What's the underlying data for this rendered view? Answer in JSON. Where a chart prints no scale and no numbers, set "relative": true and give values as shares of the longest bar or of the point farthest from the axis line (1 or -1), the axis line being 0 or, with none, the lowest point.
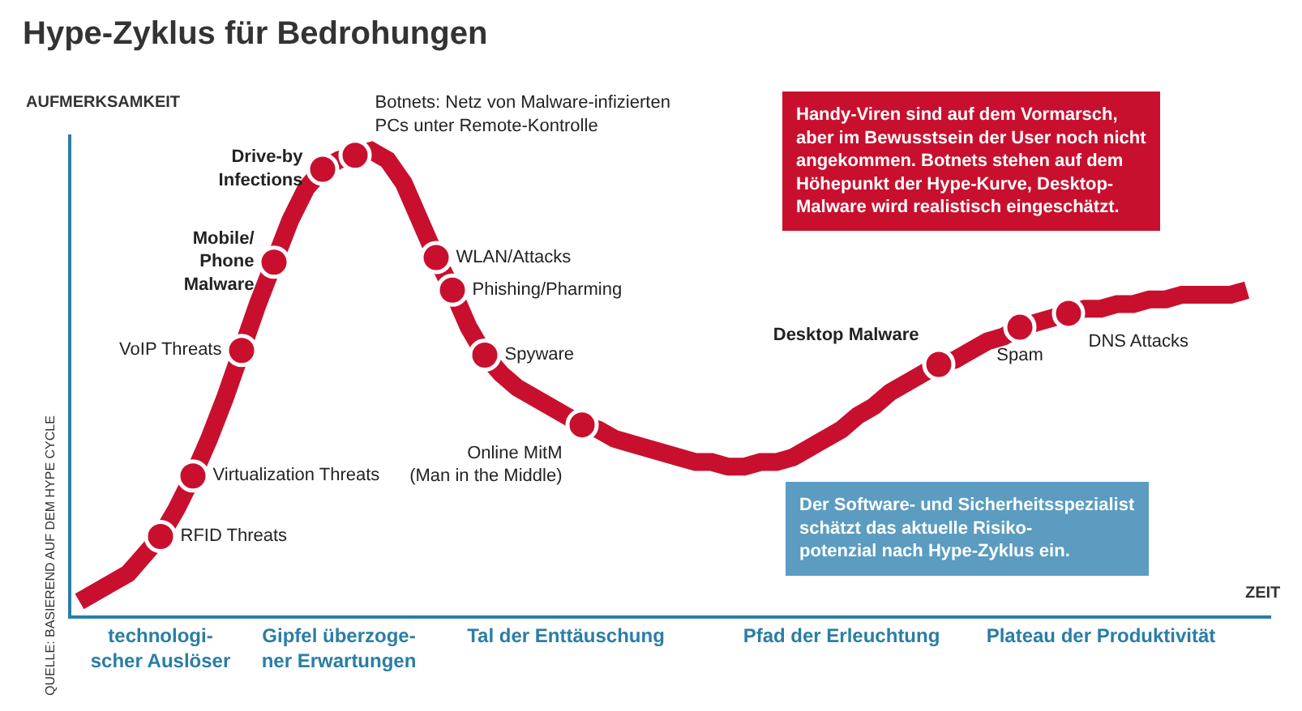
{
  "chart_data": {
    "type": "line",
    "title": "Hype-Zyklus für Bedrohungen",
    "xlabel": "ZEIT",
    "ylabel": "AUFMERKSAMKEIT",
    "relative": true,
    "categories": [
      null,
      null,
      null,
      null,
      null,
      "technologi-\nscher Auslöser",
      null,
      null,
      null,
      null,
      null,
      null,
      null,
      null,
      null,
      null,
      "Gipfel überzoge-\nner Erwartungen",
      null,
      null,
      null,
      null,
      null,
      null,
      null,
      null,
      null,
      null,
      null,
      null,
      null,
      "Tal der Enttäuschung",
      null,
      null,
      null,
      null,
      null,
      null,
      null,
      null,
      null,
      null,
      null,
      null,
      null,
      null,
      null,
      null,
      "Pfad der Erleuchtung",
      null,
      null,
      null,
      null,
      null,
      null,
      null,
      null,
      null,
      null,
      null,
      null,
      null,
      null,
      null,
      "Plateau der Produktivität",
      null,
      null,
      null,
      null,
      null,
      null,
      null,
      null,
      null,
      null
    ],
    "series": [
      {
        "color": "#c8102e",
        "values": [
          0.03,
          0.05,
          0.07,
          0.09,
          0.13,
          0.17,
          0.23,
          0.3,
          0.38,
          0.47,
          0.57,
          0.67,
          0.76,
          0.85,
          0.92,
          0.96,
          0.98,
          0.99,
          1.0,
          0.98,
          0.93,
          0.85,
          0.77,
          0.7,
          0.62,
          0.56,
          0.52,
          0.49,
          0.47,
          0.45,
          0.43,
          0.41,
          0.4,
          0.38,
          0.37,
          0.36,
          0.35,
          0.34,
          0.33,
          0.33,
          0.32,
          0.32,
          0.33,
          0.33,
          0.34,
          0.36,
          0.38,
          0.4,
          0.43,
          0.45,
          0.48,
          0.5,
          0.52,
          0.54,
          0.55,
          0.57,
          0.59,
          0.6,
          0.62,
          0.63,
          0.64,
          0.65,
          0.66,
          0.66,
          0.67,
          0.67,
          0.68,
          0.68,
          0.69,
          0.69,
          0.69,
          0.69,
          0.7,
          null
        ]
      },
      {
        "name": "RFID Threats",
        "type": "scatter",
        "marker": "circle",
        "color": "#c8102e",
        "values": [
          null,
          null,
          null,
          null,
          null,
          0.17,
          null,
          null,
          null,
          null,
          null,
          null,
          null,
          null,
          null,
          null,
          null,
          null,
          null,
          null,
          null,
          null,
          null,
          null,
          null,
          null,
          null,
          null,
          null,
          null,
          null,
          null,
          null,
          null,
          null,
          null,
          null,
          null,
          null,
          null,
          null,
          null,
          null,
          null,
          null,
          null,
          null,
          null,
          null,
          null,
          null,
          null,
          null,
          null,
          null,
          null,
          null,
          null,
          null,
          null,
          null,
          null,
          null,
          null,
          null,
          null,
          null,
          null,
          null,
          null,
          null,
          null,
          null,
          null
        ]
      },
      {
        "name": "Virtualization Threats",
        "type": "scatter",
        "marker": "circle",
        "color": "#c8102e",
        "values": [
          null,
          null,
          null,
          null,
          null,
          null,
          null,
          0.3,
          null,
          null,
          null,
          null,
          null,
          null,
          null,
          null,
          null,
          null,
          null,
          null,
          null,
          null,
          null,
          null,
          null,
          null,
          null,
          null,
          null,
          null,
          null,
          null,
          null,
          null,
          null,
          null,
          null,
          null,
          null,
          null,
          null,
          null,
          null,
          null,
          null,
          null,
          null,
          null,
          null,
          null,
          null,
          null,
          null,
          null,
          null,
          null,
          null,
          null,
          null,
          null,
          null,
          null,
          null,
          null,
          null,
          null,
          null,
          null,
          null,
          null,
          null,
          null,
          null,
          null
        ]
      },
      {
        "name": "VoIP Threats",
        "type": "scatter",
        "marker": "circle",
        "color": "#c8102e",
        "values": [
          null,
          null,
          null,
          null,
          null,
          null,
          null,
          null,
          null,
          null,
          0.57,
          null,
          null,
          null,
          null,
          null,
          null,
          null,
          null,
          null,
          null,
          null,
          null,
          null,
          null,
          null,
          null,
          null,
          null,
          null,
          null,
          null,
          null,
          null,
          null,
          null,
          null,
          null,
          null,
          null,
          null,
          null,
          null,
          null,
          null,
          null,
          null,
          null,
          null,
          null,
          null,
          null,
          null,
          null,
          null,
          null,
          null,
          null,
          null,
          null,
          null,
          null,
          null,
          null,
          null,
          null,
          null,
          null,
          null,
          null,
          null,
          null,
          null,
          null
        ]
      },
      {
        "name": "Mobile/\nPhone\nMalware",
        "type": "scatter",
        "marker": "circle",
        "color": "#c8102e",
        "values": [
          null,
          null,
          null,
          null,
          null,
          null,
          null,
          null,
          null,
          null,
          null,
          null,
          0.76,
          null,
          null,
          null,
          null,
          null,
          null,
          null,
          null,
          null,
          null,
          null,
          null,
          null,
          null,
          null,
          null,
          null,
          null,
          null,
          null,
          null,
          null,
          null,
          null,
          null,
          null,
          null,
          null,
          null,
          null,
          null,
          null,
          null,
          null,
          null,
          null,
          null,
          null,
          null,
          null,
          null,
          null,
          null,
          null,
          null,
          null,
          null,
          null,
          null,
          null,
          null,
          null,
          null,
          null,
          null,
          null,
          null,
          null,
          null,
          null,
          null
        ]
      },
      {
        "name": "Drive-by\nInfections",
        "type": "scatter",
        "marker": "circle",
        "color": "#c8102e",
        "values": [
          null,
          null,
          null,
          null,
          null,
          null,
          null,
          null,
          null,
          null,
          null,
          null,
          null,
          null,
          null,
          0.96,
          null,
          null,
          null,
          null,
          null,
          null,
          null,
          null,
          null,
          null,
          null,
          null,
          null,
          null,
          null,
          null,
          null,
          null,
          null,
          null,
          null,
          null,
          null,
          null,
          null,
          null,
          null,
          null,
          null,
          null,
          null,
          null,
          null,
          null,
          null,
          null,
          null,
          null,
          null,
          null,
          null,
          null,
          null,
          null,
          null,
          null,
          null,
          null,
          null,
          null,
          null,
          null,
          null,
          null,
          null,
          null,
          null,
          null
        ]
      },
      {
        "name": "Botnets: Netz von Malware-infizierten\nPCs unter Remote-Kontrolle",
        "type": "scatter",
        "marker": "circle",
        "color": "#c8102e",
        "values": [
          null,
          null,
          null,
          null,
          null,
          null,
          null,
          null,
          null,
          null,
          null,
          null,
          null,
          null,
          null,
          null,
          null,
          0.99,
          null,
          null,
          null,
          null,
          null,
          null,
          null,
          null,
          null,
          null,
          null,
          null,
          null,
          null,
          null,
          null,
          null,
          null,
          null,
          null,
          null,
          null,
          null,
          null,
          null,
          null,
          null,
          null,
          null,
          null,
          null,
          null,
          null,
          null,
          null,
          null,
          null,
          null,
          null,
          null,
          null,
          null,
          null,
          null,
          null,
          null,
          null,
          null,
          null,
          null,
          null,
          null,
          null,
          null,
          null,
          null
        ]
      },
      {
        "name": "WLAN/Attacks",
        "type": "scatter",
        "marker": "circle",
        "color": "#c8102e",
        "values": [
          null,
          null,
          null,
          null,
          null,
          null,
          null,
          null,
          null,
          null,
          null,
          null,
          null,
          null,
          null,
          null,
          null,
          null,
          null,
          null,
          null,
          null,
          0.77,
          null,
          null,
          null,
          null,
          null,
          null,
          null,
          null,
          null,
          null,
          null,
          null,
          null,
          null,
          null,
          null,
          null,
          null,
          null,
          null,
          null,
          null,
          null,
          null,
          null,
          null,
          null,
          null,
          null,
          null,
          null,
          null,
          null,
          null,
          null,
          null,
          null,
          null,
          null,
          null,
          null,
          null,
          null,
          null,
          null,
          null,
          null,
          null,
          null,
          null,
          null
        ]
      },
      {
        "name": "Phishing/Pharming",
        "type": "scatter",
        "marker": "circle",
        "color": "#c8102e",
        "values": [
          null,
          null,
          null,
          null,
          null,
          null,
          null,
          null,
          null,
          null,
          null,
          null,
          null,
          null,
          null,
          null,
          null,
          null,
          null,
          null,
          null,
          null,
          null,
          0.7,
          null,
          null,
          null,
          null,
          null,
          null,
          null,
          null,
          null,
          null,
          null,
          null,
          null,
          null,
          null,
          null,
          null,
          null,
          null,
          null,
          null,
          null,
          null,
          null,
          null,
          null,
          null,
          null,
          null,
          null,
          null,
          null,
          null,
          null,
          null,
          null,
          null,
          null,
          null,
          null,
          null,
          null,
          null,
          null,
          null,
          null,
          null,
          null,
          null,
          null
        ]
      },
      {
        "name": "Spyware",
        "type": "scatter",
        "marker": "circle",
        "color": "#c8102e",
        "values": [
          null,
          null,
          null,
          null,
          null,
          null,
          null,
          null,
          null,
          null,
          null,
          null,
          null,
          null,
          null,
          null,
          null,
          null,
          null,
          null,
          null,
          null,
          null,
          null,
          null,
          0.56,
          null,
          null,
          null,
          null,
          null,
          null,
          null,
          null,
          null,
          null,
          null,
          null,
          null,
          null,
          null,
          null,
          null,
          null,
          null,
          null,
          null,
          null,
          null,
          null,
          null,
          null,
          null,
          null,
          null,
          null,
          null,
          null,
          null,
          null,
          null,
          null,
          null,
          null,
          null,
          null,
          null,
          null,
          null,
          null,
          null,
          null,
          null,
          null
        ]
      },
      {
        "name": "Online MitM\n(Man in the Middle)",
        "type": "scatter",
        "marker": "circle",
        "color": "#c8102e",
        "values": [
          null,
          null,
          null,
          null,
          null,
          null,
          null,
          null,
          null,
          null,
          null,
          null,
          null,
          null,
          null,
          null,
          null,
          null,
          null,
          null,
          null,
          null,
          null,
          null,
          null,
          null,
          null,
          null,
          null,
          null,
          null,
          0.41,
          null,
          null,
          null,
          null,
          null,
          null,
          null,
          null,
          null,
          null,
          null,
          null,
          null,
          null,
          null,
          null,
          null,
          null,
          null,
          null,
          null,
          null,
          null,
          null,
          null,
          null,
          null,
          null,
          null,
          null,
          null,
          null,
          null,
          null,
          null,
          null,
          null,
          null,
          null,
          null,
          null,
          null
        ]
      },
      {
        "name": "Desktop Malware",
        "type": "scatter",
        "marker": "circle",
        "color": "#c8102e",
        "values": [
          null,
          null,
          null,
          null,
          null,
          null,
          null,
          null,
          null,
          null,
          null,
          null,
          null,
          null,
          null,
          null,
          null,
          null,
          null,
          null,
          null,
          null,
          null,
          null,
          null,
          null,
          null,
          null,
          null,
          null,
          null,
          null,
          null,
          null,
          null,
          null,
          null,
          null,
          null,
          null,
          null,
          null,
          null,
          null,
          null,
          null,
          null,
          null,
          null,
          null,
          null,
          null,
          null,
          0.54,
          null,
          null,
          null,
          null,
          null,
          null,
          null,
          null,
          null,
          null,
          null,
          null,
          null,
          null,
          null,
          null,
          null,
          null,
          null,
          null
        ]
      },
      {
        "name": "Spam",
        "type": "scatter",
        "marker": "circle",
        "color": "#c8102e",
        "values": [
          null,
          null,
          null,
          null,
          null,
          null,
          null,
          null,
          null,
          null,
          null,
          null,
          null,
          null,
          null,
          null,
          null,
          null,
          null,
          null,
          null,
          null,
          null,
          null,
          null,
          null,
          null,
          null,
          null,
          null,
          null,
          null,
          null,
          null,
          null,
          null,
          null,
          null,
          null,
          null,
          null,
          null,
          null,
          null,
          null,
          null,
          null,
          null,
          null,
          null,
          null,
          null,
          null,
          null,
          null,
          null,
          null,
          null,
          0.62,
          null,
          null,
          null,
          null,
          null,
          null,
          null,
          null,
          null,
          null,
          null,
          null,
          null,
          null,
          null
        ]
      },
      {
        "name": "DNS Attacks",
        "type": "scatter",
        "marker": "circle",
        "color": "#c8102e",
        "values": [
          null,
          null,
          null,
          null,
          null,
          null,
          null,
          null,
          null,
          null,
          null,
          null,
          null,
          null,
          null,
          null,
          null,
          null,
          null,
          null,
          null,
          null,
          null,
          null,
          null,
          null,
          null,
          null,
          null,
          null,
          null,
          null,
          null,
          null,
          null,
          null,
          null,
          null,
          null,
          null,
          null,
          null,
          null,
          null,
          null,
          null,
          null,
          null,
          null,
          null,
          null,
          null,
          null,
          null,
          null,
          null,
          null,
          null,
          null,
          null,
          null,
          0.65,
          null,
          null,
          null,
          null,
          null,
          null,
          null,
          null,
          null,
          null,
          null,
          null
        ]
      }
    ],
    "annotations": [
      "Handy-Viren sind auf dem Vormarsch,\naber im Bewusstsein der User noch nicht\nangekommen. Botnets stehen auf dem\nHöhepunkt der Hype-Kurve, Desktop-\nMalware wird realistisch eingeschätzt.",
      "Der Software- und Sicherheitsspezialist\nschätzt das aktuelle Risiko-\npotenzial nach Hype-Zyklus ein.",
      "QUELLE: BASIEREND AUF DEM HYPE CYCLE"
    ]
  }
}
